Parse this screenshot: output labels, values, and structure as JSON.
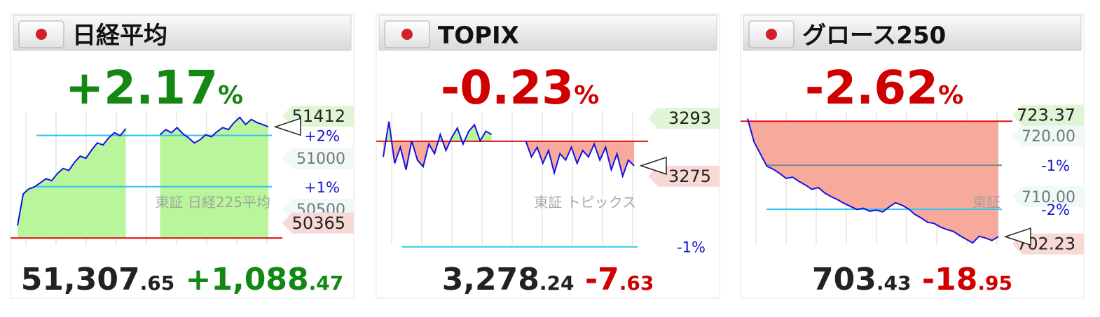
{
  "chart_data": [
    {
      "type": "line",
      "title": "日経平均",
      "change_pct": "+2.17%",
      "price": "51,307.65",
      "change": "+1,088.47",
      "color": "#128712",
      "watermark": "東証 日経225平均",
      "series": [
        {
          "color": "#1212e6",
          "values": [
            50340,
            50650,
            50700,
            50720,
            50760,
            50800,
            50780,
            50850,
            50900,
            50880,
            50960,
            51020,
            51000,
            51080,
            51150,
            51130,
            51200,
            51250,
            51220,
            51290,
            null,
            null,
            null,
            null,
            null,
            51230,
            51280,
            51250,
            51300,
            51240,
            51200,
            51150,
            51180,
            51230,
            51210,
            51260,
            51300,
            51280,
            51350,
            51400,
            51330,
            51380,
            51350,
            51330,
            51307.65
          ]
        }
      ],
      "prev_close": 50219.18,
      "high": 51412,
      "low": 50365,
      "ylim": [
        50117,
        51453
      ],
      "yticks": [
        51000,
        50500
      ],
      "ref_lines": [
        {
          "value": 51223.6,
          "label": "+2%",
          "color": "#33c6ee"
        },
        {
          "value": 50721.4,
          "label": "+1%",
          "color": "#33c6ee"
        }
      ],
      "fill_up": "#b9f59b",
      "fill_down": "#f7aa9b"
    },
    {
      "type": "line",
      "title": "TOPIX",
      "change_pct": "-0.23%",
      "price": "3,278.24",
      "change": "-7.63",
      "color": "#d00000",
      "watermark": "東証 トピックス",
      "series": [
        {
          "color": "#1212e6",
          "values": [
            3281,
            3292,
            3279,
            3284,
            3277,
            3286,
            3280,
            3278,
            3285,
            3282,
            3288,
            3283,
            3287,
            3290,
            3285,
            3289,
            3291,
            3286,
            3289,
            3288,
            null,
            null,
            null,
            null,
            null,
            3286,
            3281,
            3284,
            3279,
            3283,
            3276,
            3282,
            3280,
            3284,
            3279,
            3283,
            3281,
            3285,
            3280,
            3284,
            3277,
            3282,
            3275,
            3280,
            3278.24
          ]
        }
      ],
      "prev_close": 3285.87,
      "high": 3293,
      "low": 3275,
      "ylim": [
        3252.5,
        3295
      ],
      "yticks": [],
      "ref_lines": [
        {
          "value": 3253,
          "label": "-1%",
          "color": "#33c6ee"
        }
      ],
      "fill_up": "#b9f59b",
      "fill_down": "#f7aa9b"
    },
    {
      "type": "line",
      "title": "グロース250",
      "change_pct": "-2.62%",
      "price": "703.43",
      "change": "-18.95",
      "color": "#d00000",
      "watermark": "東証",
      "series": [
        {
          "color": "#1212e6",
          "values": [
            722.8,
            719,
            717,
            715,
            714.5,
            713.8,
            713,
            713.2,
            712.5,
            711.9,
            711.2,
            711.5,
            710.6,
            710,
            709.5,
            708.9,
            708.4,
            707.9,
            708.1,
            707.6,
            707.8,
            707.5,
            708.3,
            709.0,
            708.6,
            708.0,
            707.1,
            706.5,
            705.8,
            705.6,
            705.0,
            704.6,
            704.3,
            703.6,
            703.0,
            702.4,
            703.5,
            703.2,
            702.8,
            703.43
          ]
        }
      ],
      "prev_close": 722.38,
      "high": 723.37,
      "low": 702.23,
      "ylim": [
        701.5,
        723.9
      ],
      "yticks": [
        {
          "value": 720,
          "label": "720.00"
        },
        {
          "value": 710,
          "label": "710.00"
        }
      ],
      "ref_lines": [
        {
          "value": 715.16,
          "label": "-1%",
          "color": "#7a8a9a"
        },
        {
          "value": 707.93,
          "label": "-2%",
          "color": "#33c6ee"
        }
      ],
      "fill_up": "#b9f59b",
      "fill_down": "#f7aa9b"
    }
  ]
}
